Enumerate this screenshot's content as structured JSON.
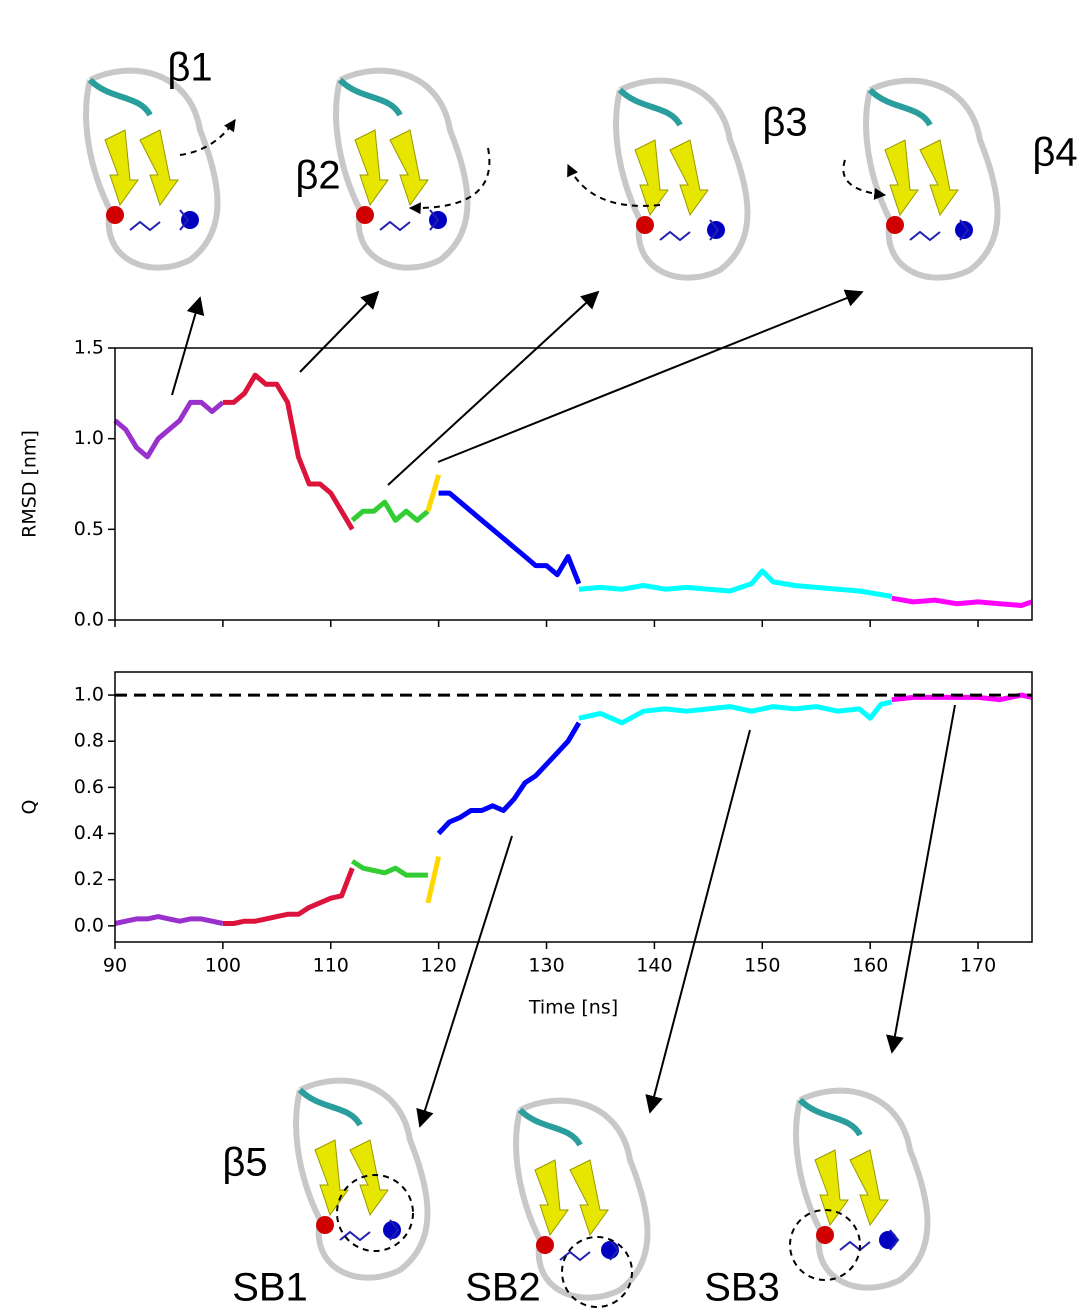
{
  "chart_data": [
    {
      "type": "line",
      "ylabel": "RMSD [nm]",
      "xlim": [
        90,
        175
      ],
      "xticks": [
        90,
        100,
        110,
        120,
        130,
        140,
        150,
        160,
        170
      ],
      "xtick_labels": false,
      "ylim": [
        0,
        1.5
      ],
      "yticks": [
        {
          "value": 0,
          "label": "0.0"
        },
        0.5,
        {
          "value": 1,
          "label": "1.0"
        },
        1.5
      ],
      "series": [
        {
          "color": "#9932cc",
          "x": [
            90,
            91,
            92,
            93,
            94,
            95,
            96,
            97,
            98,
            99,
            100
          ],
          "values": [
            1.1,
            1.05,
            0.95,
            0.9,
            1.0,
            1.05,
            1.1,
            1.2,
            1.2,
            1.15,
            1.2
          ]
        },
        {
          "color": "#dc143c",
          "x": [
            100,
            101,
            102,
            103,
            104,
            105,
            106,
            107,
            108,
            109,
            110,
            111,
            112
          ],
          "values": [
            1.2,
            1.2,
            1.25,
            1.35,
            1.3,
            1.3,
            1.2,
            0.9,
            0.75,
            0.75,
            0.7,
            0.6,
            0.5
          ]
        },
        {
          "color": "#32cd32",
          "x": [
            112,
            113,
            114,
            115,
            116,
            117,
            118,
            119
          ],
          "values": [
            0.55,
            0.6,
            0.6,
            0.65,
            0.55,
            0.6,
            0.55,
            0.6
          ]
        },
        {
          "color": "#ffd700",
          "x": [
            119,
            119.5,
            120
          ],
          "values": [
            0.6,
            0.7,
            0.8
          ]
        },
        {
          "color": "#0000ff",
          "x": [
            120,
            121,
            122,
            123,
            124,
            125,
            126,
            127,
            128,
            129,
            130,
            131,
            132,
            133
          ],
          "values": [
            0.7,
            0.7,
            0.65,
            0.6,
            0.55,
            0.5,
            0.45,
            0.4,
            0.35,
            0.3,
            0.3,
            0.25,
            0.35,
            0.2
          ]
        },
        {
          "color": "#00ffff",
          "x": [
            133,
            135,
            137,
            139,
            141,
            143,
            145,
            147,
            149,
            150,
            151,
            153,
            155,
            157,
            159,
            160,
            161,
            162
          ],
          "values": [
            0.17,
            0.18,
            0.17,
            0.19,
            0.17,
            0.18,
            0.17,
            0.16,
            0.2,
            0.27,
            0.21,
            0.19,
            0.18,
            0.17,
            0.16,
            0.15,
            0.14,
            0.13
          ]
        },
        {
          "color": "#ff00ff",
          "x": [
            162,
            164,
            166,
            168,
            170,
            172,
            174,
            175
          ],
          "values": [
            0.12,
            0.1,
            0.11,
            0.09,
            0.1,
            0.09,
            0.08,
            0.1
          ]
        }
      ]
    },
    {
      "type": "line",
      "ylabel": "Q",
      "xlabel": "Time [ns]",
      "xlim": [
        90,
        175
      ],
      "xticks": [
        90,
        100,
        110,
        120,
        130,
        140,
        150,
        160,
        170
      ],
      "xtick_labels": true,
      "ylim": [
        -0.07,
        1.1
      ],
      "yticks": [
        {
          "value": 0,
          "label": "0.0"
        },
        0.2,
        0.4,
        0.6,
        0.8,
        {
          "value": 1,
          "label": "1.0"
        }
      ],
      "hline": {
        "value": 1,
        "color": "#000000",
        "dashed": true
      },
      "series": [
        {
          "color": "#9932cc",
          "x": [
            90,
            91,
            92,
            93,
            94,
            95,
            96,
            97,
            98,
            99,
            100
          ],
          "values": [
            0.01,
            0.02,
            0.03,
            0.03,
            0.04,
            0.03,
            0.02,
            0.03,
            0.03,
            0.02,
            0.01
          ]
        },
        {
          "color": "#dc143c",
          "x": [
            100,
            101,
            102,
            103,
            104,
            105,
            106,
            107,
            108,
            109,
            110,
            111,
            112
          ],
          "values": [
            0.01,
            0.01,
            0.02,
            0.02,
            0.03,
            0.04,
            0.05,
            0.05,
            0.08,
            0.1,
            0.12,
            0.13,
            0.25
          ]
        },
        {
          "color": "#32cd32",
          "x": [
            112,
            113,
            114,
            115,
            116,
            117,
            118,
            119
          ],
          "values": [
            0.28,
            0.25,
            0.24,
            0.23,
            0.25,
            0.22,
            0.22,
            0.22
          ]
        },
        {
          "color": "#ffd700",
          "x": [
            119,
            119.5,
            120
          ],
          "values": [
            0.1,
            0.2,
            0.3
          ]
        },
        {
          "color": "#0000ff",
          "x": [
            120,
            121,
            122,
            123,
            124,
            125,
            126,
            127,
            128,
            129,
            130,
            131,
            132,
            133
          ],
          "values": [
            0.4,
            0.45,
            0.47,
            0.5,
            0.5,
            0.52,
            0.5,
            0.55,
            0.62,
            0.65,
            0.7,
            0.75,
            0.8,
            0.88
          ]
        },
        {
          "color": "#00ffff",
          "x": [
            133,
            135,
            137,
            139,
            141,
            143,
            145,
            147,
            149,
            150,
            151,
            153,
            155,
            157,
            159,
            160,
            161,
            162
          ],
          "values": [
            0.9,
            0.92,
            0.88,
            0.93,
            0.94,
            0.93,
            0.94,
            0.95,
            0.93,
            0.94,
            0.95,
            0.94,
            0.95,
            0.93,
            0.94,
            0.9,
            0.96,
            0.97
          ]
        },
        {
          "color": "#ff00ff",
          "x": [
            162,
            164,
            166,
            168,
            170,
            172,
            174,
            175
          ],
          "values": [
            0.98,
            0.99,
            0.99,
            0.99,
            0.99,
            0.98,
            1.0,
            0.99
          ]
        }
      ]
    }
  ],
  "labels": [
    "β1",
    "β2",
    "β3",
    "β4",
    "β5",
    "SB1",
    "SB2",
    "SB3"
  ]
}
